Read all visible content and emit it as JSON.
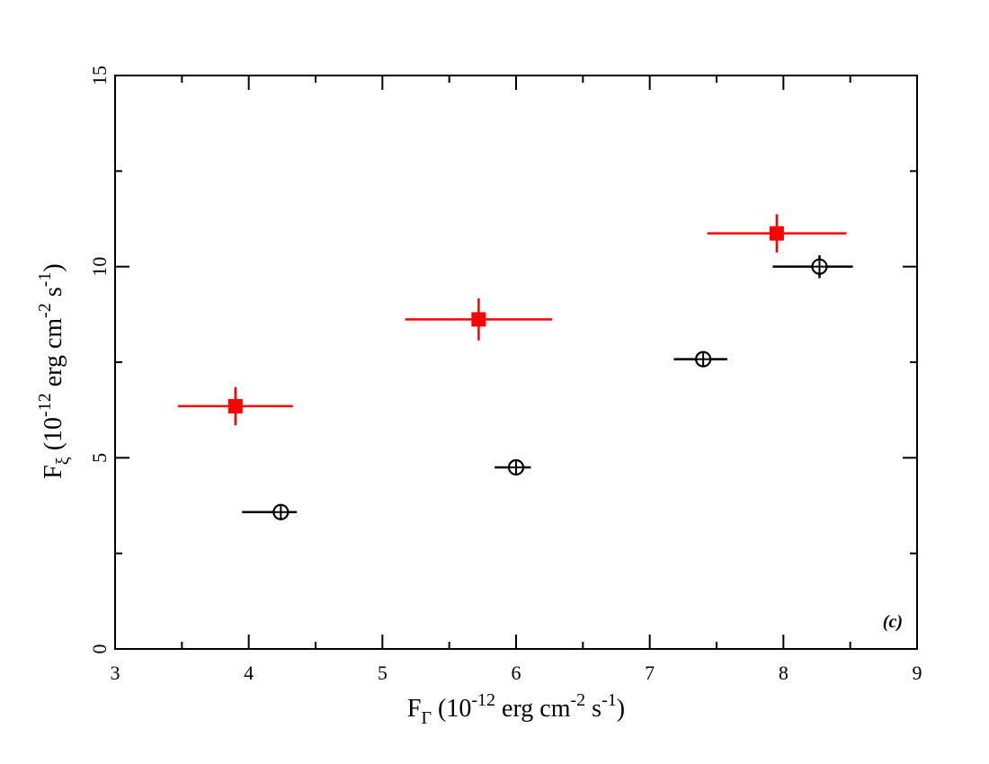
{
  "chart_data": {
    "type": "scatter",
    "xlim": [
      3,
      9
    ],
    "ylim": [
      0,
      15
    ],
    "x_ticks": [
      "3",
      "4",
      "5",
      "6",
      "7",
      "8",
      "9"
    ],
    "y_ticks": [
      "0",
      "5",
      "10",
      "15"
    ],
    "xlabel": {
      "main": "F",
      "sub": "Γ",
      "pre": " (10",
      "exp1": "-12",
      "mid": " erg cm",
      "exp2": "-2",
      "mid2": " s",
      "exp3": "-1",
      "post": ")"
    },
    "ylabel": {
      "main": "F",
      "sub": "ξ",
      "pre": " (10",
      "exp1": "-12",
      "mid": " erg cm",
      "exp2": "-2",
      "mid2": " s",
      "exp3": "-1",
      "post": ")"
    },
    "panel_label": "(c)",
    "grid": false,
    "series": [
      {
        "marker": "filled-square",
        "color": "#ff0000",
        "points": [
          {
            "x": 3.9,
            "y": 6.35,
            "xerr": [
              0.43,
              0.43
            ],
            "yerr": [
              0.5,
              0.5
            ]
          },
          {
            "x": 5.72,
            "y": 8.62,
            "xerr": [
              0.55,
              0.55
            ],
            "yerr": [
              0.55,
              0.55
            ]
          },
          {
            "x": 7.95,
            "y": 10.87,
            "xerr": [
              0.52,
              0.52
            ],
            "yerr": [
              0.5,
              0.5
            ]
          }
        ]
      },
      {
        "marker": "open-circle-cross",
        "color": "#000000",
        "points": [
          {
            "x": 4.24,
            "y": 3.58,
            "xerr": [
              0.29,
              0.12
            ],
            "yerr": [
              0.2,
              0.2
            ]
          },
          {
            "x": 6.0,
            "y": 4.75,
            "xerr": [
              0.16,
              0.11
            ],
            "yerr": [
              0.15,
              0.15
            ]
          },
          {
            "x": 7.4,
            "y": 7.58,
            "xerr": [
              0.22,
              0.18
            ],
            "yerr": [
              0.2,
              0.2
            ]
          },
          {
            "x": 8.27,
            "y": 10.0,
            "xerr": [
              0.35,
              0.25
            ],
            "yerr": [
              0.3,
              0.3
            ]
          }
        ]
      }
    ]
  }
}
